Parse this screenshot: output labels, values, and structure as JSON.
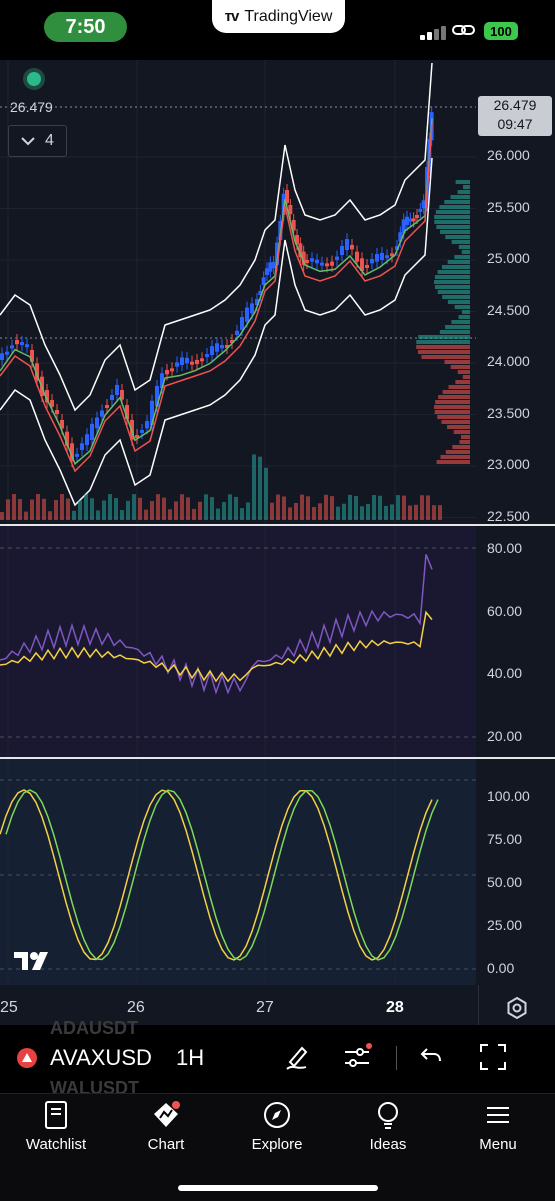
{
  "status": {
    "time": "7:50",
    "app": "TradingView",
    "battery": "100"
  },
  "chart": {
    "last_price": "26.479",
    "countdown": "09:47",
    "interval_count": "4",
    "price_axis": [
      "26.000",
      "25.500",
      "25.000",
      "24.500",
      "24.000",
      "23.500",
      "23.000",
      "22.500"
    ],
    "rsi_axis": [
      "80.00",
      "60.00",
      "40.00",
      "20.00"
    ],
    "stoch_axis": [
      "100.00",
      "75.00",
      "50.00",
      "25.00",
      "0.00"
    ],
    "x_axis": [
      "25",
      "26",
      "27",
      "28"
    ],
    "colors": {
      "up": "#2962ff",
      "down": "#ef5350",
      "rsi": "#7e57c2",
      "rsi_ma": "#f5d142",
      "k": "#f5d142",
      "d": "#7ed957"
    }
  },
  "toolbar": {
    "symbol": "AVAXUSD",
    "interval": "1H",
    "ghost_above": "ADAUSDT",
    "ghost_below": "WALUSDT"
  },
  "tabs": [
    {
      "label": "Watchlist",
      "icon": "book-icon"
    },
    {
      "label": "Chart",
      "icon": "chart-icon"
    },
    {
      "label": "Explore",
      "icon": "compass-icon"
    },
    {
      "label": "Ideas",
      "icon": "bulb-icon"
    },
    {
      "label": "Menu",
      "icon": "menu-icon"
    }
  ]
}
